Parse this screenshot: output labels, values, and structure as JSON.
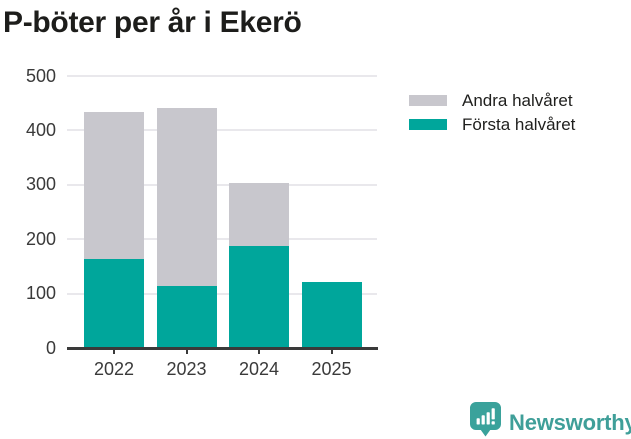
{
  "title": "P-böter per år i Ekerö",
  "chart_data": {
    "type": "bar",
    "stacked": true,
    "title": "P-böter per år i Ekerö",
    "categories": [
      "2022",
      "2023",
      "2024",
      "2025"
    ],
    "series": [
      {
        "name": "Första halvåret",
        "color": "#00a69b",
        "values": [
          163,
          113,
          186,
          120
        ]
      },
      {
        "name": "Andra halvåret",
        "color": "#c8c7cd",
        "values": [
          270,
          327,
          117,
          0
        ]
      }
    ],
    "totals": [
      433,
      440,
      303,
      120
    ],
    "xlabel": "",
    "ylabel": "",
    "ylim": [
      0,
      500
    ],
    "yticks": [
      0,
      100,
      200,
      300,
      400,
      500
    ],
    "grid": true,
    "legend_position": "right"
  },
  "legend": {
    "items": [
      {
        "label": "Andra halvåret",
        "color": "#c8c7cd"
      },
      {
        "label": "Första halvåret",
        "color": "#00a69b"
      }
    ]
  },
  "branding": {
    "name": "Newsworthy",
    "icon": "newsworthy-chart-bubble-icon",
    "text_color": "#3f9f99",
    "icon_color": "#3aa29b"
  }
}
